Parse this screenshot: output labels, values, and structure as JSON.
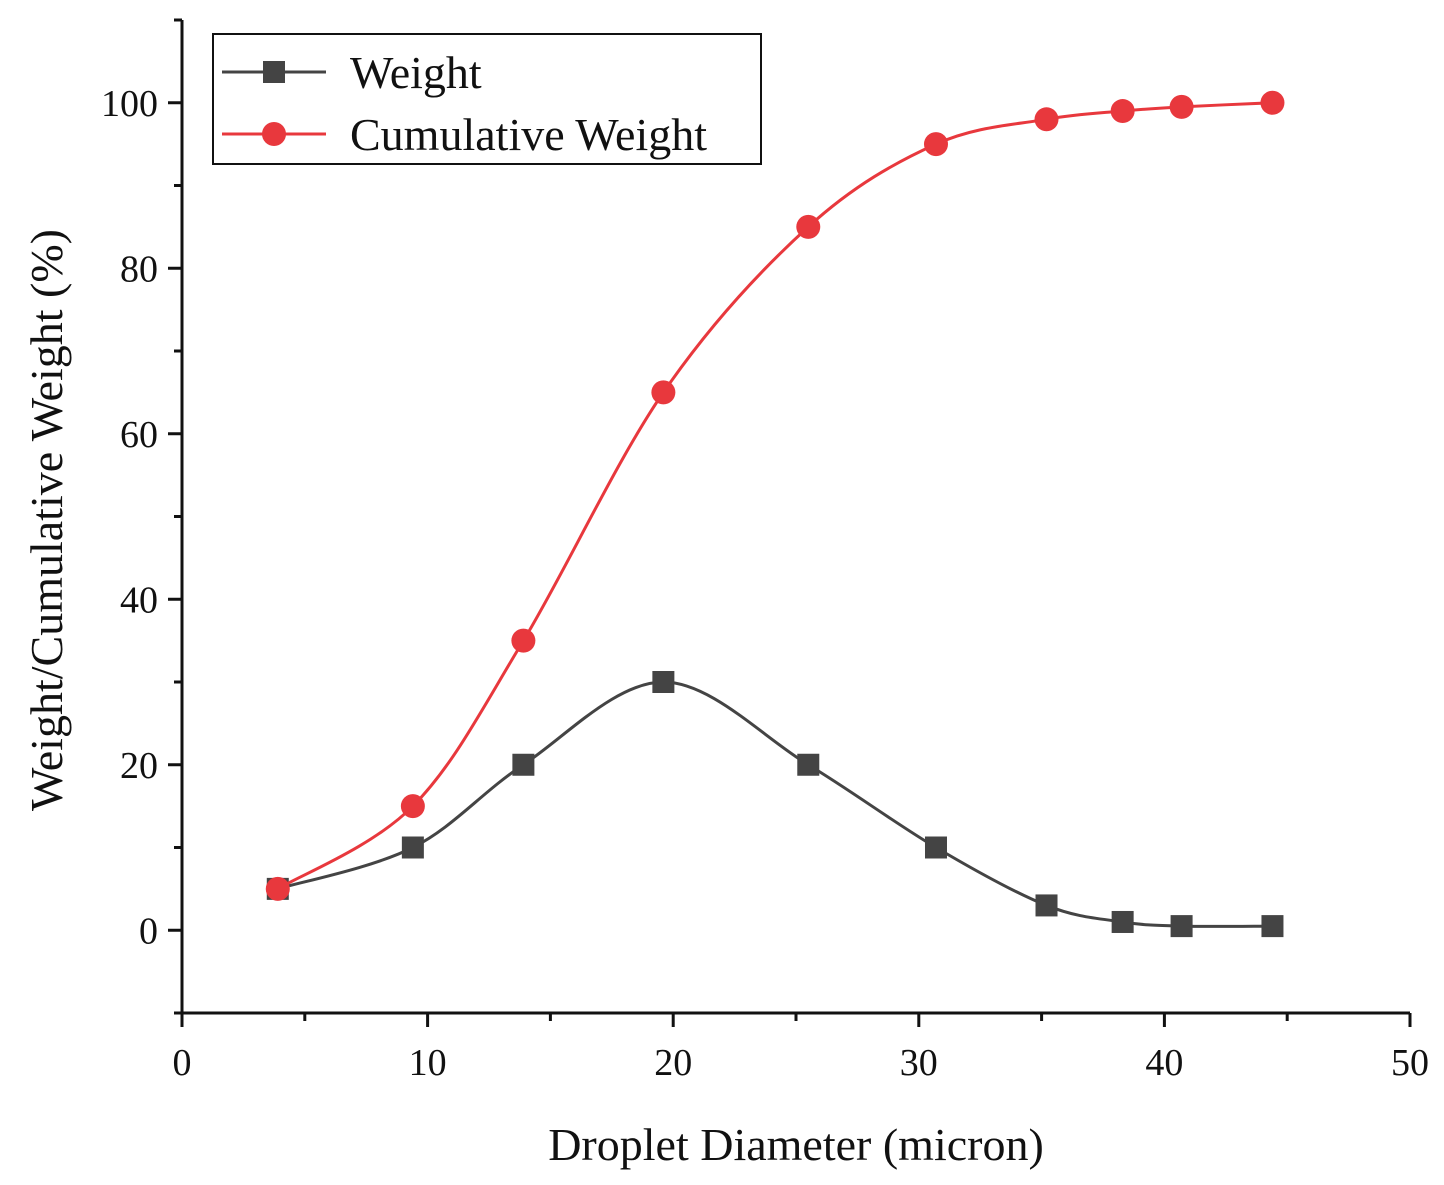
{
  "chart_data": {
    "type": "line",
    "title": "",
    "xlabel": "Droplet Diameter (micron)",
    "ylabel": "Weight/Cumulative Weight (%)",
    "xlim": [
      0,
      50
    ],
    "ylim": [
      -10,
      110
    ],
    "x_ticks": [
      0,
      10,
      20,
      30,
      40,
      50
    ],
    "y_ticks": [
      0,
      20,
      40,
      60,
      80,
      100
    ],
    "grid": false,
    "legend_position": "top-left",
    "series": [
      {
        "name": "Weight",
        "marker": "square",
        "color": "#444444",
        "x": [
          3.9,
          9.4,
          13.9,
          19.6,
          25.5,
          30.7,
          35.2,
          38.3,
          40.7,
          44.4
        ],
        "values": [
          5,
          10,
          20,
          30,
          20,
          10,
          3,
          1,
          0.5,
          0.5
        ]
      },
      {
        "name": "Cumulative Weight",
        "marker": "circle",
        "color": "#e8383d",
        "x": [
          3.9,
          9.4,
          13.9,
          19.6,
          25.5,
          30.7,
          35.2,
          38.3,
          40.7,
          44.4
        ],
        "values": [
          5,
          15,
          35,
          65,
          85,
          95,
          98,
          99,
          99.5,
          100
        ]
      }
    ]
  }
}
